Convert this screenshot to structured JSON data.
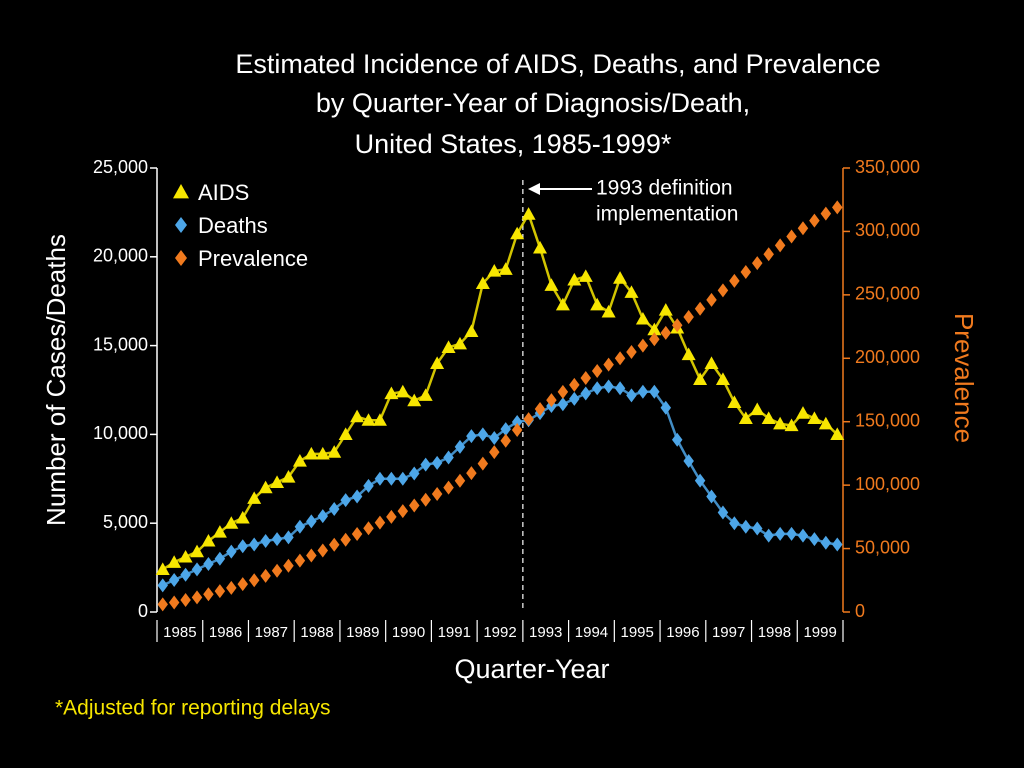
{
  "chart_data": {
    "type": "line",
    "title": [
      "Estimated Incidence of AIDS, Deaths, and Prevalence",
      "by Quarter-Year of Diagnosis/Death,",
      "United States, 1985-1999*"
    ],
    "x_label": "Quarter-Year",
    "y_label": "Number of Cases/Deaths",
    "y2_label": "Prevalence",
    "footnote": "*Adjusted for reporting delays",
    "annotation": [
      "1993 definition",
      "implementation"
    ],
    "years": [
      "1985",
      "1986",
      "1987",
      "1988",
      "1989",
      "1990",
      "1991",
      "1992",
      "1993",
      "1994",
      "1995",
      "1996",
      "1997",
      "1998",
      "1999"
    ],
    "ylim": [
      0,
      25000
    ],
    "yticks": [
      0,
      {
        "value": 5000,
        "label": "5,000"
      },
      {
        "value": 10000,
        "label": "10,000"
      },
      {
        "value": 15000,
        "label": "15,000"
      },
      {
        "value": 20000,
        "label": "20,000"
      },
      {
        "value": 25000,
        "label": "25,000"
      }
    ],
    "y2lim": [
      0,
      350000
    ],
    "y2ticks": [
      0,
      {
        "value": 50000,
        "label": "50,000"
      },
      {
        "value": 100000,
        "label": "100,000"
      },
      {
        "value": 150000,
        "label": "150,000"
      },
      {
        "value": 200000,
        "label": "200,000"
      },
      {
        "value": 250000,
        "label": "250,000"
      },
      {
        "value": 300000,
        "label": "300,000"
      },
      {
        "value": 350000,
        "label": "350,000"
      }
    ],
    "legend": "upper left",
    "series": [
      {
        "name": "AIDS",
        "color": "#f7e600",
        "marker": "triangle",
        "values": [
          2400,
          2800,
          3100,
          3400,
          4000,
          4500,
          5000,
          5300,
          6400,
          7000,
          7300,
          7600,
          8500,
          8900,
          8900,
          9000,
          10000,
          11000,
          10800,
          10800,
          12300,
          12400,
          11900,
          12200,
          14000,
          14900,
          15100,
          15800,
          18500,
          19200,
          19300,
          21300,
          22400,
          20500,
          18400,
          17300,
          18700,
          18900,
          17300,
          16900,
          18800,
          18000,
          16500,
          15900,
          17000,
          16000,
          14500,
          13100,
          14000,
          13100,
          11800,
          10900,
          11400,
          10900,
          10600,
          10500,
          11200,
          10900,
          10600,
          10000
        ]
      },
      {
        "name": "Deaths",
        "color": "#4da6e8",
        "marker": "diamond",
        "values": [
          1500,
          1800,
          2100,
          2400,
          2700,
          3000,
          3400,
          3700,
          3800,
          4000,
          4100,
          4200,
          4800,
          5100,
          5400,
          5800,
          6300,
          6500,
          7100,
          7500,
          7500,
          7500,
          7800,
          8300,
          8400,
          8700,
          9300,
          9900,
          10000,
          9800,
          10300,
          10700,
          10800,
          11200,
          11600,
          11700,
          12000,
          12300,
          12600,
          12700,
          12600,
          12200,
          12400,
          12400,
          11500,
          9700,
          8500,
          7400,
          6500,
          5600,
          5000,
          4800,
          4700,
          4300,
          4400,
          4400,
          4300,
          4100,
          3900,
          3800
        ]
      },
      {
        "name": "Prevalence",
        "color": "#f07a1e",
        "marker": "diamond",
        "axis": "y2",
        "values": [
          6000,
          7500,
          9500,
          11500,
          14000,
          16500,
          19000,
          22000,
          25000,
          28500,
          32500,
          36500,
          40500,
          44500,
          48500,
          53000,
          57000,
          61500,
          66000,
          70500,
          75000,
          79500,
          84000,
          88500,
          93000,
          98000,
          103500,
          109500,
          117000,
          126000,
          135000,
          143500,
          152000,
          160000,
          167000,
          173500,
          179000,
          184500,
          190000,
          195000,
          200000,
          205000,
          210000,
          215000,
          220000,
          226000,
          232500,
          239000,
          246000,
          253500,
          261000,
          268000,
          275000,
          282000,
          289000,
          296000,
          302500,
          308500,
          314000,
          319000
        ]
      }
    ]
  }
}
